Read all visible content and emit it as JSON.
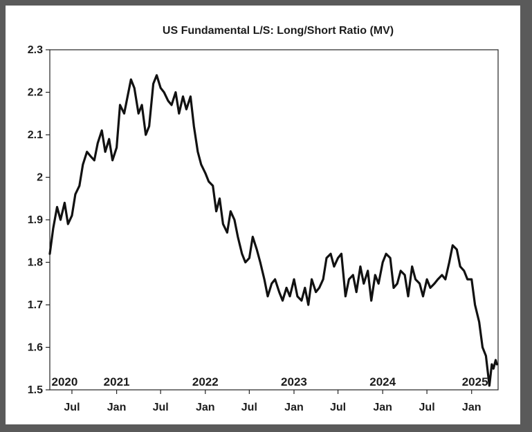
{
  "chart_data": {
    "type": "line",
    "title": "US Fundamental L/S: Long/Short Ratio (MV)",
    "xlabel": "",
    "ylabel": "",
    "xlim": [
      "2020-04-01",
      "2025-04-20"
    ],
    "ylim": [
      1.5,
      2.3
    ],
    "yticks": [
      "1.5",
      "1.6",
      "1.7",
      "1.8",
      "1.9",
      "2",
      "2.1",
      "2.2",
      "2.3"
    ],
    "xticks": [
      {
        "date": "2020-07-01",
        "label": "Jul"
      },
      {
        "date": "2021-01-01",
        "label": "Jan"
      },
      {
        "date": "2021-07-01",
        "label": "Jul"
      },
      {
        "date": "2022-01-01",
        "label": "Jan"
      },
      {
        "date": "2022-07-01",
        "label": "Jul"
      },
      {
        "date": "2023-01-01",
        "label": "Jan"
      },
      {
        "date": "2023-07-01",
        "label": "Jul"
      },
      {
        "date": "2024-01-01",
        "label": "Jan"
      },
      {
        "date": "2024-07-01",
        "label": "Jul"
      },
      {
        "date": "2025-01-01",
        "label": "Jan"
      }
    ],
    "year_labels": [
      {
        "date": "2020-06-01",
        "label": "2020"
      },
      {
        "date": "2021-01-01",
        "label": "2021"
      },
      {
        "date": "2022-01-01",
        "label": "2022"
      },
      {
        "date": "2023-01-01",
        "label": "2023"
      },
      {
        "date": "2024-01-01",
        "label": "2024"
      },
      {
        "date": "2025-01-15",
        "label": "2025"
      }
    ],
    "grid": false,
    "line_color": "#111111",
    "series": [
      {
        "x": [
          "2020-04-01",
          "2020-04-15",
          "2020-05-01",
          "2020-05-15",
          "2020-06-01",
          "2020-06-15",
          "2020-07-01",
          "2020-07-15",
          "2020-08-01",
          "2020-08-15",
          "2020-09-01",
          "2020-09-15",
          "2020-10-01",
          "2020-10-15",
          "2020-11-01",
          "2020-11-15",
          "2020-12-01",
          "2020-12-15",
          "2021-01-01",
          "2021-01-15",
          "2021-02-01",
          "2021-02-15",
          "2021-03-01",
          "2021-03-15",
          "2021-04-01",
          "2021-04-15",
          "2021-05-01",
          "2021-05-15",
          "2021-06-01",
          "2021-06-15",
          "2021-07-01",
          "2021-07-15",
          "2021-08-01",
          "2021-08-15",
          "2021-09-01",
          "2021-09-15",
          "2021-10-01",
          "2021-10-15",
          "2021-11-01",
          "2021-11-15",
          "2021-12-01",
          "2021-12-15",
          "2022-01-01",
          "2022-01-15",
          "2022-02-01",
          "2022-02-15",
          "2022-03-01",
          "2022-03-15",
          "2022-04-01",
          "2022-04-15",
          "2022-05-01",
          "2022-05-15",
          "2022-06-01",
          "2022-06-15",
          "2022-07-01",
          "2022-07-15",
          "2022-08-01",
          "2022-08-15",
          "2022-09-01",
          "2022-09-15",
          "2022-10-01",
          "2022-10-15",
          "2022-11-01",
          "2022-11-15",
          "2022-12-01",
          "2022-12-15",
          "2023-01-01",
          "2023-01-15",
          "2023-02-01",
          "2023-02-15",
          "2023-03-01",
          "2023-03-15",
          "2023-04-01",
          "2023-04-15",
          "2023-05-01",
          "2023-05-15",
          "2023-06-01",
          "2023-06-15",
          "2023-07-01",
          "2023-07-15",
          "2023-08-01",
          "2023-08-15",
          "2023-09-01",
          "2023-09-15",
          "2023-10-01",
          "2023-10-15",
          "2023-11-01",
          "2023-11-15",
          "2023-12-01",
          "2023-12-15",
          "2024-01-01",
          "2024-01-15",
          "2024-02-01",
          "2024-02-15",
          "2024-03-01",
          "2024-03-15",
          "2024-04-01",
          "2024-04-15",
          "2024-05-01",
          "2024-05-15",
          "2024-06-01",
          "2024-06-15",
          "2024-07-01",
          "2024-07-15",
          "2024-08-01",
          "2024-08-15",
          "2024-09-01",
          "2024-09-15",
          "2024-10-01",
          "2024-10-15",
          "2024-11-01",
          "2024-11-15",
          "2024-12-01",
          "2024-12-15",
          "2025-01-01",
          "2025-01-15",
          "2025-02-01",
          "2025-02-15",
          "2025-03-01",
          "2025-03-15",
          "2025-03-25",
          "2025-04-01",
          "2025-04-10",
          "2025-04-15"
        ],
        "values": [
          1.82,
          1.88,
          1.93,
          1.9,
          1.94,
          1.89,
          1.91,
          1.96,
          1.98,
          2.03,
          2.06,
          2.05,
          2.04,
          2.08,
          2.11,
          2.06,
          2.09,
          2.04,
          2.07,
          2.17,
          2.15,
          2.19,
          2.23,
          2.21,
          2.15,
          2.17,
          2.1,
          2.12,
          2.22,
          2.24,
          2.21,
          2.2,
          2.18,
          2.17,
          2.2,
          2.15,
          2.19,
          2.16,
          2.19,
          2.12,
          2.06,
          2.03,
          2.01,
          1.99,
          1.98,
          1.92,
          1.95,
          1.89,
          1.87,
          1.92,
          1.9,
          1.86,
          1.82,
          1.8,
          1.81,
          1.86,
          1.83,
          1.8,
          1.76,
          1.72,
          1.75,
          1.76,
          1.73,
          1.71,
          1.74,
          1.72,
          1.76,
          1.72,
          1.71,
          1.74,
          1.7,
          1.76,
          1.73,
          1.74,
          1.76,
          1.81,
          1.82,
          1.79,
          1.81,
          1.82,
          1.72,
          1.76,
          1.77,
          1.73,
          1.79,
          1.75,
          1.78,
          1.71,
          1.77,
          1.75,
          1.8,
          1.82,
          1.81,
          1.74,
          1.75,
          1.78,
          1.77,
          1.72,
          1.79,
          1.76,
          1.75,
          1.72,
          1.76,
          1.74,
          1.75,
          1.76,
          1.77,
          1.76,
          1.8,
          1.84,
          1.83,
          1.79,
          1.78,
          1.76,
          1.76,
          1.7,
          1.66,
          1.6,
          1.58,
          1.51,
          1.56,
          1.55,
          1.57,
          1.56
        ]
      }
    ]
  }
}
